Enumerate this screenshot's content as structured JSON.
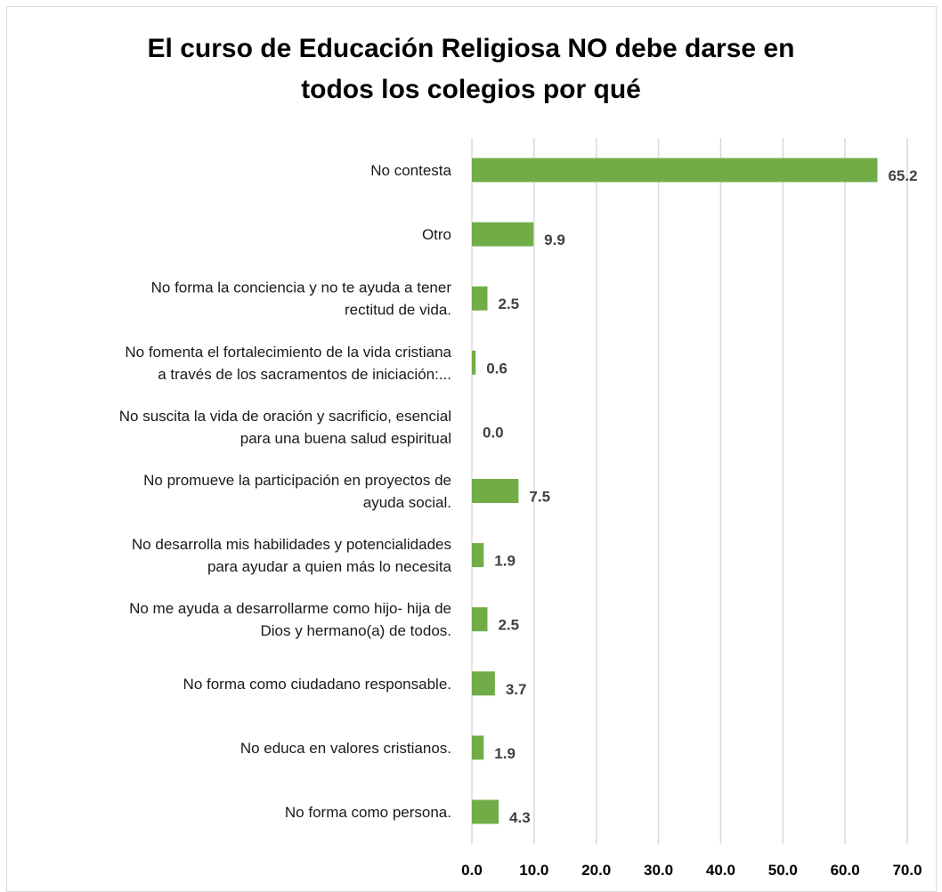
{
  "chart_data": {
    "type": "bar",
    "orientation": "horizontal",
    "title": "El curso de Educación Religiosa NO debe darse en todos los colegios por qué",
    "title_lines": [
      "El curso de Educación Religiosa NO debe darse en",
      "todos los colegios por qué"
    ],
    "categories": [
      [
        "No contesta"
      ],
      [
        "Otro"
      ],
      [
        "No forma la conciencia y no te ayuda a tener",
        "rectitud de vida."
      ],
      [
        "No fomenta el fortalecimiento de la vida cristiana",
        "a través de los sacramentos de iniciación:..."
      ],
      [
        "No suscita la vida de oración y sacrificio, esencial",
        "para una buena salud espiritual"
      ],
      [
        "No promueve la participación en proyectos de",
        "ayuda social."
      ],
      [
        "No desarrolla mis habilidades y potencialidades",
        "para ayudar a quien más lo necesita"
      ],
      [
        "No me ayuda a desarrollarme como hijo- hija de",
        "Dios y hermano(a) de todos."
      ],
      [
        "No forma como ciudadano responsable."
      ],
      [
        "No educa en valores cristianos."
      ],
      [
        "No forma como persona."
      ]
    ],
    "values": [
      65.2,
      9.9,
      2.5,
      0.6,
      0.0,
      7.5,
      1.9,
      2.5,
      3.7,
      1.9,
      4.3
    ],
    "value_labels": [
      "65.2",
      "9.9",
      "2.5",
      "0.6",
      "0.0",
      "7.5",
      "1.9",
      "2.5",
      "3.7",
      "1.9",
      "4.3"
    ],
    "xlim": [
      0,
      70
    ],
    "xticks": [
      "0.0",
      "10.0",
      "20.0",
      "30.0",
      "40.0",
      "50.0",
      "60.0",
      "70.0"
    ],
    "grid": "vertical",
    "legend": "none",
    "bar_color": "#70ad47",
    "grid_color": "#d9d9d9",
    "value_label_color": "#404040"
  }
}
